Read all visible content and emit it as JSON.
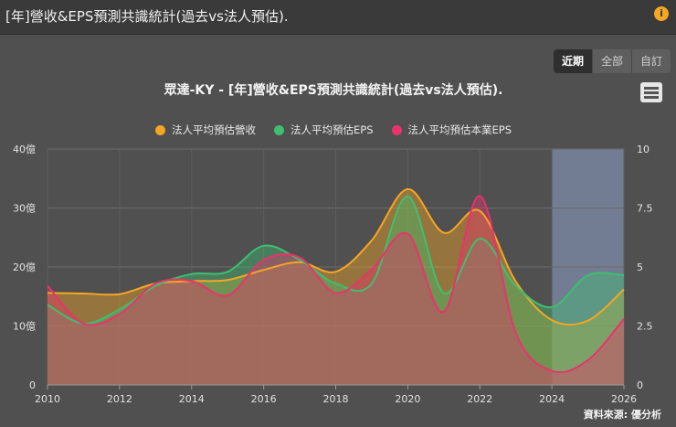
{
  "header": {
    "title": "[年]營收&EPS預測共識統計(過去vs法人預估).",
    "info_icon": "info-icon"
  },
  "range_buttons": [
    {
      "label": "近期",
      "active": true
    },
    {
      "label": "全部",
      "active": false
    },
    {
      "label": "自訂",
      "active": false
    }
  ],
  "menu_icon": "hamburger-menu-icon",
  "credit": "資料來源: 優分析",
  "colors": {
    "revenue": "#f5a623",
    "eps": "#3fbf6f",
    "core_eps": "#e8336d",
    "forecast_band": "#7d8ba8"
  },
  "chart_data": {
    "type": "area",
    "title": "眾達-KY - [年]營收&EPS預測共識統計(過去vs法人預估).",
    "xlim": [
      2010,
      2026
    ],
    "x_ticks": [
      "2010",
      "2012",
      "2014",
      "2016",
      "2018",
      "2020",
      "2022",
      "2024",
      "2026"
    ],
    "y_left": {
      "lim": [
        0,
        40
      ],
      "ticks": [
        "0",
        "10億",
        "20億",
        "30億",
        "40億"
      ]
    },
    "y_right": {
      "lim": [
        0,
        10
      ],
      "ticks": [
        "0",
        "2.5",
        "5",
        "7.5",
        "10"
      ]
    },
    "forecast_band": [
      2024,
      2026
    ],
    "grid": true,
    "legend_position": "top",
    "series": [
      {
        "name": "法人平均預估營收",
        "axis": "left",
        "color": "#f5a623",
        "x": [
          2010,
          2011,
          2012,
          2013,
          2014,
          2015,
          2016,
          2017,
          2018,
          2019,
          2020,
          2021,
          2022,
          2023,
          2024,
          2025,
          2026
        ],
        "y": [
          15.6,
          15.5,
          15.4,
          17.2,
          17.6,
          17.8,
          19.5,
          20.8,
          19.2,
          24.5,
          33.2,
          25.8,
          29.5,
          17.5,
          11.0,
          10.9,
          16.2
        ]
      },
      {
        "name": "法人平均預估EPS",
        "axis": "right",
        "color": "#3fbf6f",
        "x": [
          2010,
          2011,
          2012,
          2013,
          2014,
          2015,
          2016,
          2017,
          2018,
          2019,
          2020,
          2021,
          2022,
          2023,
          2024,
          2025,
          2026
        ],
        "y": [
          3.4,
          2.6,
          3.2,
          4.2,
          4.7,
          4.8,
          5.9,
          5.3,
          4.3,
          4.3,
          8.0,
          3.9,
          6.2,
          4.2,
          3.3,
          4.65,
          4.65
        ]
      },
      {
        "name": "法人平均預估本業EPS",
        "axis": "right",
        "color": "#e8336d",
        "x": [
          2010,
          2011,
          2012,
          2013,
          2014,
          2015,
          2016,
          2017,
          2018,
          2019,
          2020,
          2021,
          2022,
          2023,
          2024,
          2025,
          2026
        ],
        "y": [
          4.2,
          2.6,
          3.0,
          4.3,
          4.4,
          3.8,
          5.3,
          5.4,
          3.9,
          4.9,
          6.4,
          3.1,
          8.0,
          2.2,
          0.6,
          1.05,
          2.8
        ]
      }
    ]
  }
}
